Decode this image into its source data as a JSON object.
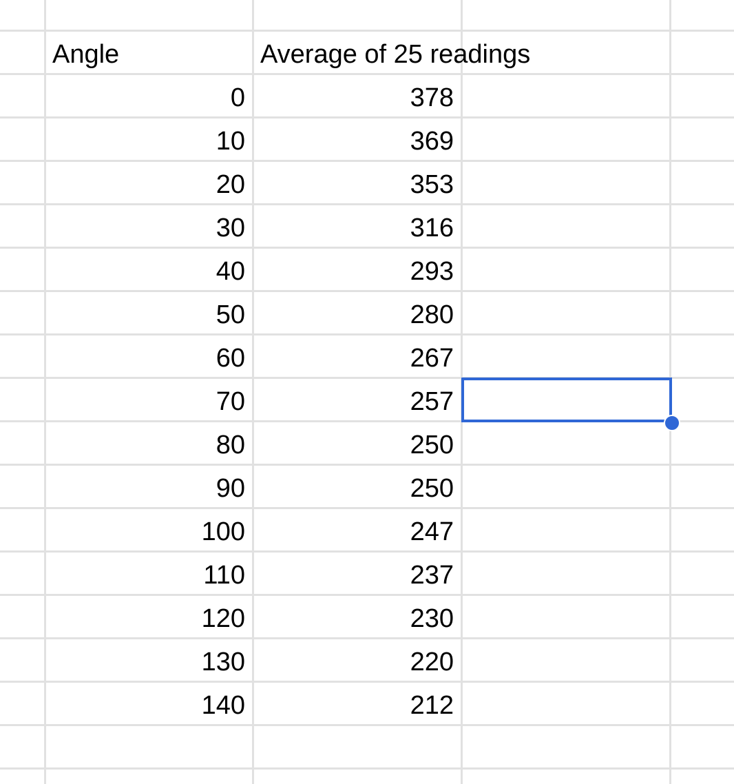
{
  "sheet": {
    "headers": {
      "angle": "Angle",
      "average": "Average of 25 readings"
    },
    "rows": [
      {
        "angle": "0",
        "average": "378"
      },
      {
        "angle": "10",
        "average": "369"
      },
      {
        "angle": "20",
        "average": "353"
      },
      {
        "angle": "30",
        "average": "316"
      },
      {
        "angle": "40",
        "average": "293"
      },
      {
        "angle": "50",
        "average": "280"
      },
      {
        "angle": "60",
        "average": "267"
      },
      {
        "angle": "70",
        "average": "257"
      },
      {
        "angle": "80",
        "average": "250"
      },
      {
        "angle": "90",
        "average": "250"
      },
      {
        "angle": "100",
        "average": "247"
      },
      {
        "angle": "110",
        "average": "237"
      },
      {
        "angle": "120",
        "average": "230"
      },
      {
        "angle": "130",
        "average": "220"
      },
      {
        "angle": "140",
        "average": "212"
      }
    ],
    "selected_cell": {
      "row_index": 7,
      "column": "third",
      "value": ""
    }
  },
  "colors": {
    "gridline": "#e1e1e1",
    "selection": "#2f67d6",
    "text": "#000000",
    "background": "#ffffff"
  }
}
